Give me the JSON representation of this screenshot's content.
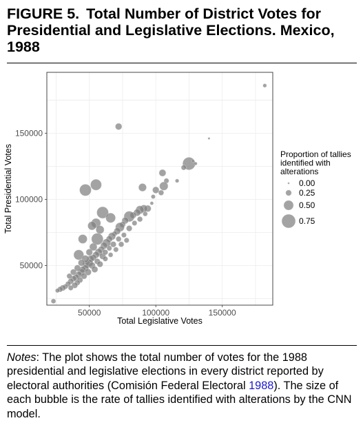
{
  "figure": {
    "number": "FIGURE 5.",
    "title": "Total Number of District Votes for Presidential and Legislative Elections. Mexico, 1988"
  },
  "notes": {
    "lead": "Notes",
    "text_before_cite": ": The plot shows the total number of votes for the 1988 presidential and legislative elections in every district reported by electoral authorities (Comisión Federal Electoral ",
    "cite_year": "1988",
    "text_after_cite": "). The size of each bubble is the rate of tallies identified with alterations by the CNN model."
  },
  "colors": {
    "bubble": "#7f7f7f",
    "bubble_stroke": "#dcdcdc",
    "grid": "#ececec",
    "panel_border": "#333333",
    "axis_text": "#4d4d4d",
    "cite_link": "#1a1acc"
  },
  "chart_data": {
    "type": "scatter",
    "xlabel": "Total Legislative Votes",
    "ylabel": "Total Presidential Votes",
    "xlim": [
      18000,
      188000
    ],
    "ylim": [
      20000,
      196000
    ],
    "x_ticks": [
      50000,
      100000,
      150000
    ],
    "y_ticks": [
      50000,
      100000,
      150000
    ],
    "grid": true,
    "legend": {
      "title": [
        "Proportion of tallies",
        "identified with",
        "alterations"
      ],
      "placement": "right",
      "entries": [
        {
          "label": "0.00",
          "size": 0.0
        },
        {
          "label": "0.25",
          "size": 0.25
        },
        {
          "label": "0.50",
          "size": 0.5
        },
        {
          "label": "0.75",
          "size": 0.75
        }
      ]
    },
    "points": [
      {
        "x": 182000,
        "y": 186000,
        "size": 0.12
      },
      {
        "x": 72000,
        "y": 155000,
        "size": 0.3
      },
      {
        "x": 140000,
        "y": 146000,
        "size": 0.02
      },
      {
        "x": 125000,
        "y": 127000,
        "size": 0.68
      },
      {
        "x": 121000,
        "y": 124000,
        "size": 0.2
      },
      {
        "x": 130000,
        "y": 127000,
        "size": 0.08
      },
      {
        "x": 128000,
        "y": 129000,
        "size": 0.05
      },
      {
        "x": 105000,
        "y": 120000,
        "size": 0.32
      },
      {
        "x": 108000,
        "y": 114000,
        "size": 0.2
      },
      {
        "x": 116000,
        "y": 114000,
        "size": 0.12
      },
      {
        "x": 106000,
        "y": 110000,
        "size": 0.42
      },
      {
        "x": 100000,
        "y": 107000,
        "size": 0.3
      },
      {
        "x": 104000,
        "y": 105000,
        "size": 0.22
      },
      {
        "x": 90000,
        "y": 109000,
        "size": 0.38
      },
      {
        "x": 55000,
        "y": 111000,
        "size": 0.58
      },
      {
        "x": 47000,
        "y": 107000,
        "size": 0.62
      },
      {
        "x": 98000,
        "y": 102000,
        "size": 0.15
      },
      {
        "x": 97000,
        "y": 97000,
        "size": 0.1
      },
      {
        "x": 94000,
        "y": 93000,
        "size": 0.3
      },
      {
        "x": 91000,
        "y": 93000,
        "size": 0.35
      },
      {
        "x": 88000,
        "y": 92000,
        "size": 0.4
      },
      {
        "x": 86000,
        "y": 90000,
        "size": 0.32
      },
      {
        "x": 83000,
        "y": 88000,
        "size": 0.28
      },
      {
        "x": 80000,
        "y": 87000,
        "size": 0.55
      },
      {
        "x": 77000,
        "y": 84000,
        "size": 0.3
      },
      {
        "x": 75000,
        "y": 81000,
        "size": 0.25
      },
      {
        "x": 73000,
        "y": 79000,
        "size": 0.45
      },
      {
        "x": 71000,
        "y": 76000,
        "size": 0.3
      },
      {
        "x": 69000,
        "y": 74000,
        "size": 0.2
      },
      {
        "x": 67000,
        "y": 72000,
        "size": 0.35
      },
      {
        "x": 65000,
        "y": 70000,
        "size": 0.28
      },
      {
        "x": 63000,
        "y": 67000,
        "size": 0.4
      },
      {
        "x": 61000,
        "y": 65000,
        "size": 0.32
      },
      {
        "x": 60000,
        "y": 90000,
        "size": 0.62
      },
      {
        "x": 66000,
        "y": 86000,
        "size": 0.5
      },
      {
        "x": 55000,
        "y": 82000,
        "size": 0.48
      },
      {
        "x": 52000,
        "y": 80000,
        "size": 0.42
      },
      {
        "x": 58000,
        "y": 77000,
        "size": 0.4
      },
      {
        "x": 56000,
        "y": 70000,
        "size": 0.62
      },
      {
        "x": 53000,
        "y": 64000,
        "size": 0.36
      },
      {
        "x": 45000,
        "y": 70000,
        "size": 0.45
      },
      {
        "x": 42000,
        "y": 58000,
        "size": 0.52
      },
      {
        "x": 59000,
        "y": 62000,
        "size": 0.3
      },
      {
        "x": 57000,
        "y": 60000,
        "size": 0.34
      },
      {
        "x": 55000,
        "y": 58000,
        "size": 0.3
      },
      {
        "x": 53000,
        "y": 56000,
        "size": 0.28
      },
      {
        "x": 51000,
        "y": 55000,
        "size": 0.32
      },
      {
        "x": 50000,
        "y": 52000,
        "size": 0.35
      },
      {
        "x": 48000,
        "y": 51000,
        "size": 0.38
      },
      {
        "x": 47000,
        "y": 48000,
        "size": 0.3
      },
      {
        "x": 45000,
        "y": 47000,
        "size": 0.28
      },
      {
        "x": 44000,
        "y": 45000,
        "size": 0.33
      },
      {
        "x": 42000,
        "y": 43000,
        "size": 0.3
      },
      {
        "x": 40000,
        "y": 41000,
        "size": 0.28
      },
      {
        "x": 38000,
        "y": 40000,
        "size": 0.26
      },
      {
        "x": 36000,
        "y": 38000,
        "size": 0.24
      },
      {
        "x": 34000,
        "y": 36000,
        "size": 0.22
      },
      {
        "x": 32000,
        "y": 34000,
        "size": 0.2
      },
      {
        "x": 30000,
        "y": 33000,
        "size": 0.25
      },
      {
        "x": 28000,
        "y": 32000,
        "size": 0.22
      },
      {
        "x": 26000,
        "y": 31000,
        "size": 0.15
      },
      {
        "x": 23000,
        "y": 23000,
        "size": 0.18
      },
      {
        "x": 52000,
        "y": 50000,
        "size": 0.3
      },
      {
        "x": 56000,
        "y": 53000,
        "size": 0.25
      },
      {
        "x": 60000,
        "y": 57000,
        "size": 0.28
      },
      {
        "x": 62000,
        "y": 60000,
        "size": 0.22
      },
      {
        "x": 65000,
        "y": 63000,
        "size": 0.2
      },
      {
        "x": 68000,
        "y": 66000,
        "size": 0.25
      },
      {
        "x": 72000,
        "y": 70000,
        "size": 0.22
      },
      {
        "x": 76000,
        "y": 73000,
        "size": 0.2
      },
      {
        "x": 80000,
        "y": 78000,
        "size": 0.25
      },
      {
        "x": 84000,
        "y": 82000,
        "size": 0.2
      },
      {
        "x": 88000,
        "y": 85000,
        "size": 0.22
      },
      {
        "x": 92000,
        "y": 89000,
        "size": 0.18
      },
      {
        "x": 58000,
        "y": 51000,
        "size": 0.26
      },
      {
        "x": 54000,
        "y": 47000,
        "size": 0.28
      },
      {
        "x": 49000,
        "y": 45000,
        "size": 0.3
      },
      {
        "x": 46000,
        "y": 42000,
        "size": 0.26
      },
      {
        "x": 43000,
        "y": 39000,
        "size": 0.24
      },
      {
        "x": 41000,
        "y": 37000,
        "size": 0.22
      },
      {
        "x": 39000,
        "y": 35000,
        "size": 0.26
      },
      {
        "x": 36000,
        "y": 33000,
        "size": 0.2
      },
      {
        "x": 50000,
        "y": 60000,
        "size": 0.3
      },
      {
        "x": 47000,
        "y": 55000,
        "size": 0.34
      },
      {
        "x": 44000,
        "y": 52000,
        "size": 0.3
      },
      {
        "x": 41000,
        "y": 48000,
        "size": 0.28
      },
      {
        "x": 38000,
        "y": 45000,
        "size": 0.26
      },
      {
        "x": 35000,
        "y": 42000,
        "size": 0.22
      },
      {
        "x": 62000,
        "y": 55000,
        "size": 0.2
      },
      {
        "x": 66000,
        "y": 58000,
        "size": 0.18
      },
      {
        "x": 70000,
        "y": 62000,
        "size": 0.2
      },
      {
        "x": 74000,
        "y": 66000,
        "size": 0.22
      },
      {
        "x": 78000,
        "y": 69000,
        "size": 0.2
      }
    ]
  }
}
